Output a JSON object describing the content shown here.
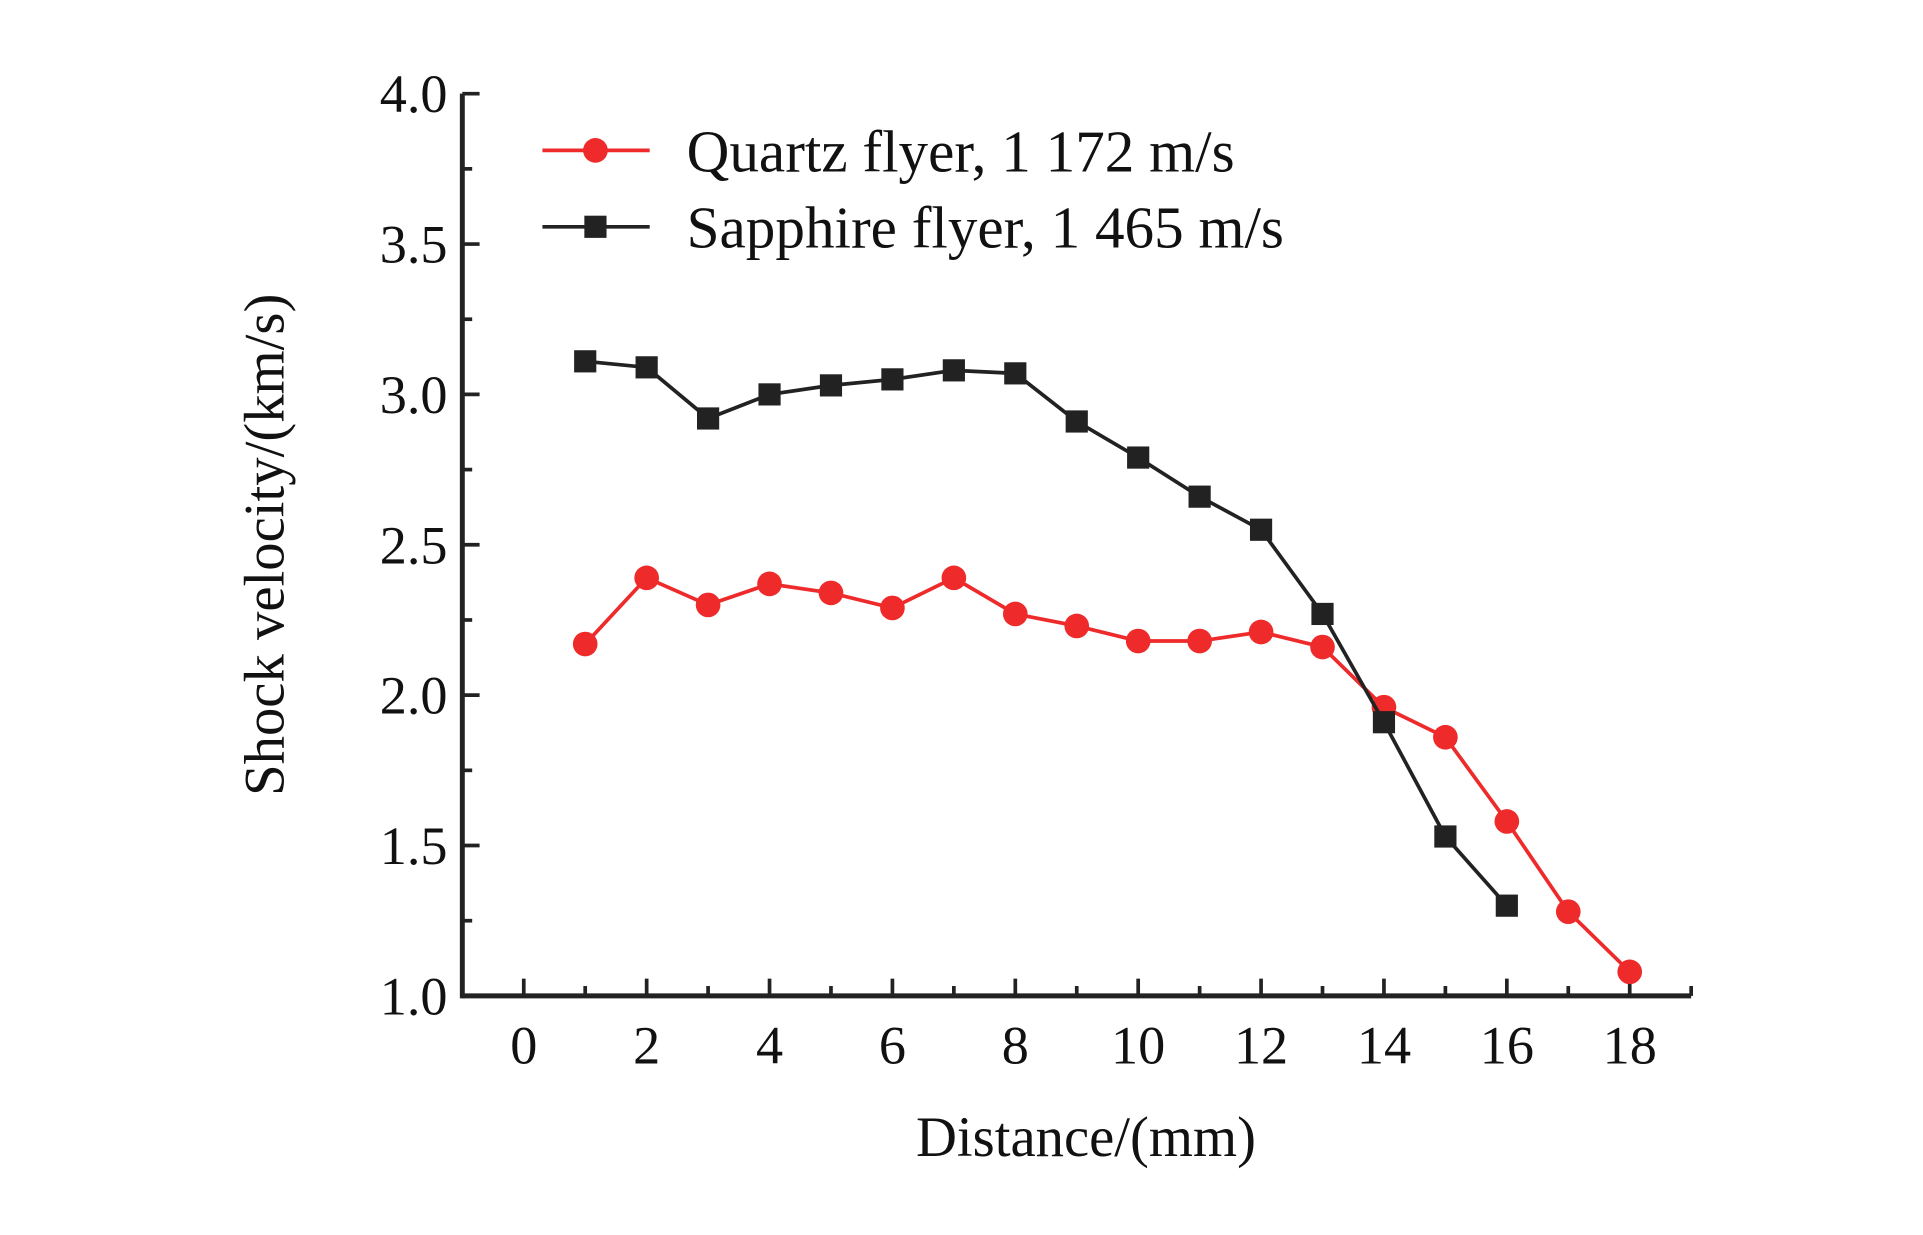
{
  "chart_data": {
    "type": "line",
    "title": "",
    "xlabel": "Distance/(mm)",
    "ylabel": "Shock velocity/(km/s)",
    "xlim": [
      -1,
      19
    ],
    "ylim": [
      1.0,
      4.0
    ],
    "xticks": [
      0,
      2,
      4,
      6,
      8,
      10,
      12,
      14,
      16,
      18
    ],
    "xtick_labels": [
      "0",
      "2",
      "4",
      "6",
      "8",
      "10",
      "12",
      "14",
      "16",
      "18"
    ],
    "yticks": [
      1.0,
      1.5,
      2.0,
      2.5,
      3.0,
      3.5,
      4.0
    ],
    "ytick_labels": [
      "1.0",
      "1.5",
      "2.0",
      "2.5",
      "3.0",
      "3.5",
      "4.0"
    ],
    "grid": false,
    "legend_position": "top-left",
    "series": [
      {
        "name": "Quartz flyer, 1 172 m/s",
        "color": "#ee2a2a",
        "marker": "circle",
        "x": [
          1,
          2,
          3,
          4,
          5,
          6,
          7,
          8,
          9,
          10,
          11,
          12,
          13,
          14,
          15,
          16,
          17,
          18
        ],
        "y": [
          2.17,
          2.39,
          2.3,
          2.37,
          2.34,
          2.29,
          2.39,
          2.27,
          2.23,
          2.18,
          2.18,
          2.21,
          2.16,
          1.96,
          1.86,
          1.58,
          1.28,
          1.08
        ]
      },
      {
        "name": "Sapphire flyer, 1 465 m/s",
        "color": "#222222",
        "marker": "square",
        "x": [
          1,
          2,
          3,
          4,
          5,
          6,
          7,
          8,
          9,
          10,
          11,
          12,
          13,
          14,
          15,
          16
        ],
        "y": [
          3.11,
          3.09,
          2.92,
          3.0,
          3.03,
          3.05,
          3.08,
          3.07,
          2.91,
          2.79,
          2.66,
          2.55,
          2.27,
          1.91,
          1.53,
          1.3
        ]
      }
    ]
  }
}
